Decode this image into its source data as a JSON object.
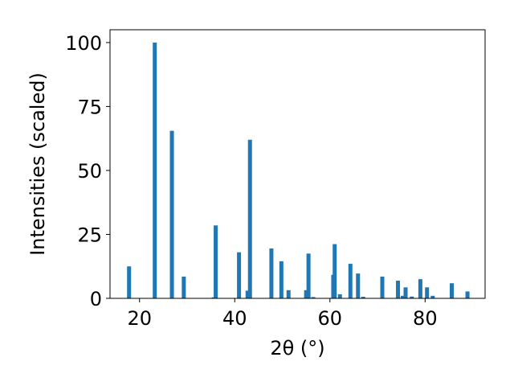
{
  "chart_data": {
    "type": "bar",
    "xlabel": "2θ (°)",
    "ylabel": "Intensities (scaled)",
    "xlim": [
      13.8,
      92.6
    ],
    "ylim": [
      0,
      105
    ],
    "xticks": [
      20,
      40,
      60,
      80
    ],
    "yticks": [
      0,
      25,
      50,
      75,
      100
    ],
    "bar_color": "#1f77b4",
    "grid": false,
    "x": [
      17.8,
      23.2,
      26.8,
      29.3,
      35.6,
      36.0,
      40.9,
      42.7,
      43.2,
      47.7,
      49.8,
      51.3,
      55.0,
      55.5,
      56.5,
      60.7,
      61.0,
      62.1,
      64.3,
      65.9,
      67.0,
      71.0,
      74.3,
      75.3,
      75.9,
      77.2,
      79.0,
      80.4,
      81.6,
      85.6,
      88.9
    ],
    "values": [
      12.5,
      100,
      65.5,
      8.5,
      0.4,
      28.5,
      18,
      3,
      62,
      19.5,
      14.5,
      3.2,
      3.2,
      17.5,
      0.5,
      9.2,
      21.2,
      1.6,
      13.5,
      9.7,
      0.6,
      8.5,
      6.9,
      1.0,
      4.3,
      0.7,
      7.5,
      4.3,
      1.0,
      5.9,
      2.7
    ]
  }
}
